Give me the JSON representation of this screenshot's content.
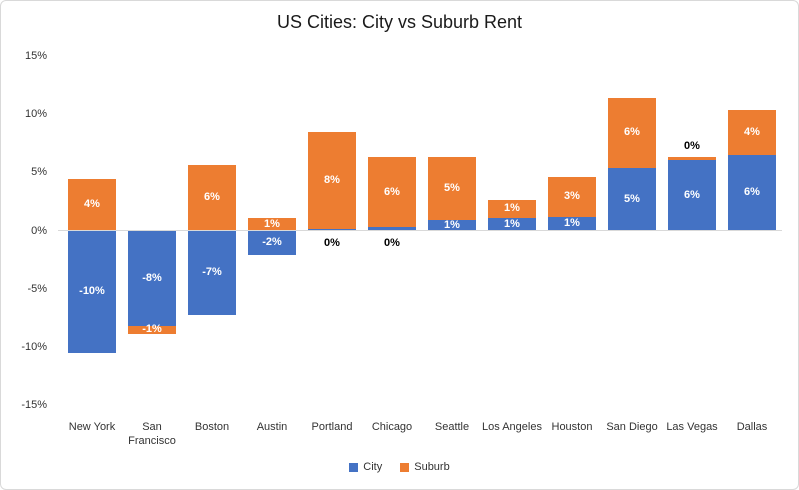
{
  "chart_data": {
    "type": "bar",
    "stacked": true,
    "title": "US Cities: City vs Suburb Rent",
    "categories": [
      "New York",
      "San Francisco",
      "Boston",
      "Austin",
      "Portland",
      "Chicago",
      "Seattle",
      "Los Angeles",
      "Houston",
      "San Diego",
      "Las Vegas",
      "Dallas"
    ],
    "series": [
      {
        "name": "City",
        "color": "#4472C4",
        "values": [
          -10,
          -8,
          -7,
          -2,
          0,
          0,
          1,
          1,
          1,
          5,
          6,
          6
        ],
        "labels": [
          "-10%",
          "-8%",
          "-7%",
          "-2%",
          "0%",
          "0%",
          "1%",
          "1%",
          "1%",
          "5%",
          "6%",
          "6%"
        ],
        "plot_values": [
          -10.5,
          -8.2,
          -7.3,
          -2.1,
          0.15,
          0.3,
          0.9,
          1.1,
          1.2,
          5.4,
          6.1,
          6.5
        ],
        "label_placement": [
          "inside",
          "inside",
          "inside",
          "inside",
          "below-axis",
          "below-axis",
          "inside",
          "inside",
          "inside",
          "inside",
          "inside",
          "inside"
        ]
      },
      {
        "name": "Suburb",
        "color": "#ED7D31",
        "values": [
          4,
          -1,
          6,
          1,
          8,
          6,
          5,
          1,
          3,
          6,
          0,
          4
        ],
        "labels": [
          "4%",
          "-1%",
          "6%",
          "1%",
          "8%",
          "6%",
          "5%",
          "1%",
          "3%",
          "6%",
          "0%",
          "4%"
        ],
        "plot_values": [
          4.4,
          -0.7,
          5.6,
          1.05,
          8.3,
          6.0,
          5.4,
          1.5,
          3.4,
          6.0,
          0.2,
          3.9
        ],
        "label_placement": [
          "inside",
          "inside",
          "inside",
          "inside",
          "inside",
          "inside",
          "inside",
          "inside",
          "inside",
          "inside",
          "above-stack",
          "inside"
        ]
      }
    ],
    "ylim": [
      -15,
      15
    ],
    "y_axis": {
      "ticks": [
        {
          "value": 15,
          "label": "15%"
        },
        {
          "value": 10,
          "label": "10%"
        },
        {
          "value": 5,
          "label": "5%"
        },
        {
          "value": 0,
          "label": "0%"
        },
        {
          "value": -5,
          "label": "-5%"
        },
        {
          "value": -10,
          "label": "-10%"
        },
        {
          "value": -15,
          "label": "-15%"
        }
      ]
    },
    "grid": "zero-axis-only",
    "label_colors": {
      "inside": "#ffffff",
      "outside": "#000000"
    },
    "axis_line_color": "#d9d9d9",
    "legend": {
      "position": "bottom",
      "entries": [
        {
          "label": "City",
          "color": "#4472C4"
        },
        {
          "label": "Suburb",
          "color": "#ED7D31"
        }
      ]
    }
  }
}
